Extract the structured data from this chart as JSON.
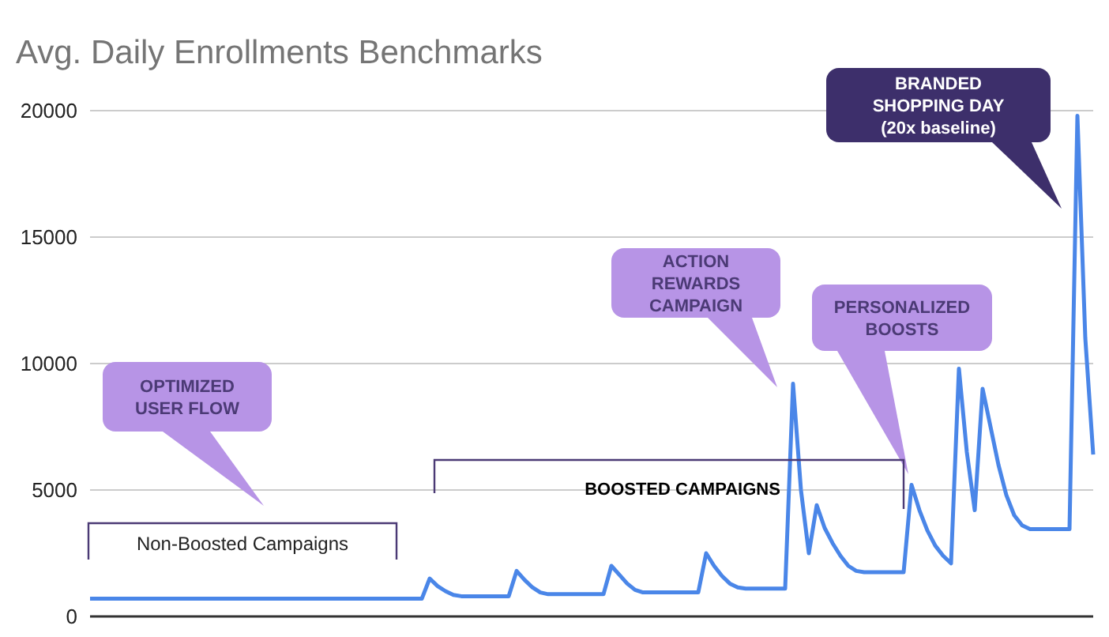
{
  "chart_data": {
    "type": "line",
    "title": "Avg. Daily Enrollments Benchmarks",
    "categories": [
      null,
      null,
      null,
      null,
      null,
      null,
      null,
      null,
      null,
      null,
      null,
      null,
      null,
      null,
      null,
      null,
      null,
      null,
      null,
      null,
      null,
      null,
      null,
      null,
      null,
      null,
      null,
      null,
      null,
      null,
      null,
      null,
      null,
      null,
      null,
      null,
      null,
      null,
      null,
      null,
      null,
      null,
      null,
      null,
      null,
      null,
      null,
      null,
      null,
      null,
      null,
      null,
      null,
      null,
      null,
      null,
      null,
      null,
      null,
      null,
      null,
      null,
      null,
      null,
      null,
      null,
      null,
      null,
      null,
      null,
      null,
      null,
      null,
      null,
      null,
      null,
      null,
      null,
      null,
      null,
      null,
      null,
      null,
      null,
      null,
      null,
      null,
      null,
      null,
      null,
      null,
      null,
      null,
      null,
      null,
      null,
      null,
      null,
      null,
      null,
      null,
      null,
      null,
      null,
      null,
      null,
      null,
      null,
      null,
      null,
      null,
      null,
      null,
      null,
      null,
      null,
      null,
      null,
      null,
      null,
      null,
      null,
      null,
      null,
      null,
      null,
      null,
      null
    ],
    "series": [
      {
        "color": "#4a86e8",
        "values": [
          700,
          700,
          700,
          700,
          700,
          700,
          700,
          700,
          700,
          700,
          700,
          700,
          700,
          700,
          700,
          700,
          700,
          700,
          700,
          700,
          700,
          700,
          700,
          700,
          700,
          700,
          700,
          700,
          700,
          700,
          700,
          700,
          700,
          700,
          700,
          700,
          700,
          700,
          700,
          700,
          700,
          700,
          700,
          1500,
          1200,
          1000,
          850,
          800,
          800,
          800,
          800,
          800,
          800,
          800,
          1800,
          1450,
          1150,
          950,
          880,
          880,
          880,
          880,
          880,
          880,
          880,
          880,
          2000,
          1650,
          1300,
          1050,
          950,
          950,
          950,
          950,
          950,
          950,
          950,
          950,
          2500,
          2000,
          1600,
          1300,
          1150,
          1100,
          1100,
          1100,
          1100,
          1100,
          1100,
          9200,
          5000,
          2500,
          4400,
          3500,
          2900,
          2400,
          2000,
          1800,
          1750,
          1750,
          1750,
          1750,
          1750,
          1750,
          5200,
          4200,
          3400,
          2800,
          2400,
          2100,
          9800,
          6500,
          4200,
          9000,
          7500,
          6000,
          4800,
          4000,
          3600,
          3450,
          3450,
          3450,
          3450,
          3450,
          3450,
          19800,
          11000,
          6400
        ]
      }
    ],
    "ylim": [
      0,
      20000
    ],
    "yticks": [
      0,
      5000,
      10000,
      15000,
      20000
    ],
    "grid": "y",
    "marker": "none",
    "annotations": [
      "OPTIMIZED USER FLOW",
      "ACTION REWARDS CAMPAIGN",
      "PERSONALIZED BOOSTS",
      "BRANDED SHOPPING DAY (20x baseline)",
      "Non-Boosted Campaigns",
      "BOOSTED CAMPAIGNS"
    ]
  }
}
